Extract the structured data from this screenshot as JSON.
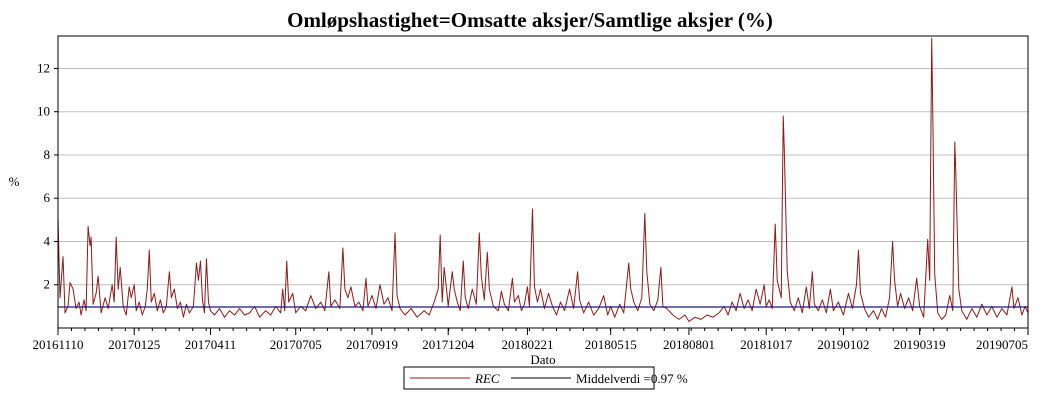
{
  "chart_data": {
    "type": "line",
    "title": "Omløpshastighet=Omsatte aksjer/Samtlige aksjer (%)",
    "xlabel": "Dato",
    "ylabel": "%",
    "xlim": [
      "20161110",
      "20190705"
    ],
    "ylim": [
      0,
      13.5
    ],
    "y_ticks": [
      2,
      4,
      6,
      8,
      10,
      12
    ],
    "x_ticks": [
      "20161110",
      "20170125",
      "20170411",
      "20170705",
      "20170919",
      "20171204",
      "20180221",
      "20180515",
      "20180801",
      "20181017",
      "20190102",
      "20190319",
      "20190705"
    ],
    "grid": "horizontal",
    "legend_placement": "bottom-center",
    "colors": {
      "series": "#8b1a1a",
      "mean": "#1a1a7a",
      "grid": "#c0c0c0"
    },
    "legend": [
      {
        "label": "REC",
        "italic": true
      },
      {
        "label": "Middelverdi =0.97 %",
        "italic": false
      }
    ],
    "series": [
      {
        "name": "REC",
        "points": [
          [
            "20161110",
            5.1
          ],
          [
            "20161112",
            1.4
          ],
          [
            "20161115",
            3.3
          ],
          [
            "20161117",
            0.7
          ],
          [
            "20161120",
            1.0
          ],
          [
            "20161122",
            2.1
          ],
          [
            "20161125",
            1.8
          ],
          [
            "20161128",
            0.9
          ],
          [
            "20161201",
            1.2
          ],
          [
            "20161203",
            0.6
          ],
          [
            "20161206",
            1.3
          ],
          [
            "20161208",
            0.8
          ],
          [
            "20161210",
            4.7
          ],
          [
            "20161212",
            3.8
          ],
          [
            "20161213",
            4.2
          ],
          [
            "20161215",
            1.1
          ],
          [
            "20161218",
            1.6
          ],
          [
            "20161220",
            2.4
          ],
          [
            "20161223",
            0.7
          ],
          [
            "20161227",
            1.4
          ],
          [
            "20161230",
            0.9
          ],
          [
            "20170103",
            2.0
          ],
          [
            "20170105",
            1.2
          ],
          [
            "20170107",
            4.2
          ],
          [
            "20170109",
            1.8
          ],
          [
            "20170111",
            2.8
          ],
          [
            "20170114",
            1.0
          ],
          [
            "20170117",
            0.6
          ],
          [
            "20170120",
            1.9
          ],
          [
            "20170122",
            1.4
          ],
          [
            "20170125",
            2.0
          ],
          [
            "20170127",
            0.8
          ],
          [
            "20170130",
            1.2
          ],
          [
            "20170202",
            0.6
          ],
          [
            "20170205",
            1.0
          ],
          [
            "20170207",
            1.8
          ],
          [
            "20170209",
            3.6
          ],
          [
            "20170211",
            1.2
          ],
          [
            "20170214",
            1.6
          ],
          [
            "20170217",
            0.8
          ],
          [
            "20170220",
            1.3
          ],
          [
            "20170223",
            0.7
          ],
          [
            "20170226",
            1.0
          ],
          [
            "20170301",
            2.6
          ],
          [
            "20170303",
            1.4
          ],
          [
            "20170306",
            1.8
          ],
          [
            "20170309",
            0.9
          ],
          [
            "20170312",
            1.2
          ],
          [
            "20170315",
            0.5
          ],
          [
            "20170318",
            1.1
          ],
          [
            "20170321",
            0.7
          ],
          [
            "20170325",
            1.0
          ],
          [
            "20170328",
            3.0
          ],
          [
            "20170330",
            2.2
          ],
          [
            "20170401",
            3.1
          ],
          [
            "20170403",
            1.3
          ],
          [
            "20170405",
            0.7
          ],
          [
            "20170407",
            3.2
          ],
          [
            "20170409",
            1.2
          ],
          [
            "20170411",
            0.8
          ],
          [
            "20170415",
            0.6
          ],
          [
            "20170420",
            0.9
          ],
          [
            "20170425",
            0.5
          ],
          [
            "20170430",
            0.8
          ],
          [
            "20170505",
            0.6
          ],
          [
            "20170510",
            0.9
          ],
          [
            "20170515",
            0.6
          ],
          [
            "20170520",
            0.7
          ],
          [
            "20170525",
            1.0
          ],
          [
            "20170530",
            0.5
          ],
          [
            "20170605",
            0.8
          ],
          [
            "20170610",
            0.6
          ],
          [
            "20170615",
            1.0
          ],
          [
            "20170620",
            0.7
          ],
          [
            "20170622",
            1.8
          ],
          [
            "20170624",
            0.8
          ],
          [
            "20170626",
            3.1
          ],
          [
            "20170628",
            1.2
          ],
          [
            "20170702",
            1.6
          ],
          [
            "20170705",
            0.7
          ],
          [
            "20170710",
            1.0
          ],
          [
            "20170715",
            0.8
          ],
          [
            "20170720",
            1.5
          ],
          [
            "20170725",
            0.9
          ],
          [
            "20170730",
            1.2
          ],
          [
            "20170803",
            0.8
          ],
          [
            "20170807",
            2.6
          ],
          [
            "20170809",
            1.0
          ],
          [
            "20170813",
            1.3
          ],
          [
            "20170818",
            0.9
          ],
          [
            "20170821",
            3.7
          ],
          [
            "20170823",
            1.8
          ],
          [
            "20170826",
            1.4
          ],
          [
            "20170829",
            1.9
          ],
          [
            "20170902",
            1.0
          ],
          [
            "20170906",
            1.2
          ],
          [
            "20170910",
            0.8
          ],
          [
            "20170913",
            2.3
          ],
          [
            "20170915",
            1.0
          ],
          [
            "20170919",
            1.5
          ],
          [
            "20170923",
            0.9
          ],
          [
            "20170927",
            2.0
          ],
          [
            "20171001",
            1.1
          ],
          [
            "20171005",
            1.4
          ],
          [
            "20171009",
            0.8
          ],
          [
            "20171012",
            4.4
          ],
          [
            "20171014",
            1.5
          ],
          [
            "20171017",
            0.9
          ],
          [
            "20171022",
            0.6
          ],
          [
            "20171028",
            0.9
          ],
          [
            "20171103",
            0.5
          ],
          [
            "20171110",
            0.8
          ],
          [
            "20171115",
            0.6
          ],
          [
            "20171120",
            1.2
          ],
          [
            "20171124",
            1.8
          ],
          [
            "20171126",
            4.3
          ],
          [
            "20171128",
            1.2
          ],
          [
            "20171130",
            2.8
          ],
          [
            "20171203",
            1.5
          ],
          [
            "20171204",
            1.0
          ],
          [
            "20171208",
            2.6
          ],
          [
            "20171210",
            1.8
          ],
          [
            "20171213",
            1.2
          ],
          [
            "20171216",
            0.8
          ],
          [
            "20171219",
            3.1
          ],
          [
            "20171221",
            1.4
          ],
          [
            "20171224",
            0.9
          ],
          [
            "20171228",
            1.8
          ],
          [
            "20180101",
            1.1
          ],
          [
            "20180104",
            4.4
          ],
          [
            "20180106",
            2.4
          ],
          [
            "20180109",
            1.3
          ],
          [
            "20180112",
            3.5
          ],
          [
            "20180114",
            1.8
          ],
          [
            "20180118",
            1.0
          ],
          [
            "20180123",
            0.8
          ],
          [
            "20180126",
            1.7
          ],
          [
            "20180129",
            1.1
          ],
          [
            "20180202",
            0.8
          ],
          [
            "20180206",
            2.3
          ],
          [
            "20180208",
            1.2
          ],
          [
            "20180212",
            1.5
          ],
          [
            "20180215",
            0.8
          ],
          [
            "20180218",
            1.1
          ],
          [
            "20180221",
            1.9
          ],
          [
            "20180223",
            1.0
          ],
          [
            "20180226",
            5.5
          ],
          [
            "20180228",
            1.9
          ],
          [
            "20180303",
            1.2
          ],
          [
            "20180306",
            1.8
          ],
          [
            "20180310",
            0.9
          ],
          [
            "20180314",
            1.6
          ],
          [
            "20180318",
            1.0
          ],
          [
            "20180322",
            0.6
          ],
          [
            "20180326",
            1.2
          ],
          [
            "20180330",
            0.8
          ],
          [
            "20180404",
            1.8
          ],
          [
            "20180408",
            0.9
          ],
          [
            "20180412",
            2.6
          ],
          [
            "20180414",
            1.3
          ],
          [
            "20180418",
            0.7
          ],
          [
            "20180423",
            1.2
          ],
          [
            "20180428",
            0.6
          ],
          [
            "20180503",
            0.9
          ],
          [
            "20180508",
            1.5
          ],
          [
            "20180512",
            0.6
          ],
          [
            "20180515",
            1.0
          ],
          [
            "20180519",
            0.5
          ],
          [
            "20180524",
            1.1
          ],
          [
            "20180528",
            0.7
          ],
          [
            "20180602",
            3.0
          ],
          [
            "20180604",
            1.8
          ],
          [
            "20180607",
            1.2
          ],
          [
            "20180611",
            0.8
          ],
          [
            "20180615",
            1.4
          ],
          [
            "20180618",
            5.3
          ],
          [
            "20180620",
            2.6
          ],
          [
            "20180623",
            1.1
          ],
          [
            "20180627",
            0.8
          ],
          [
            "20180701",
            1.3
          ],
          [
            "20180704",
            2.8
          ],
          [
            "20180706",
            1.0
          ],
          [
            "20180710",
            0.9
          ],
          [
            "20180716",
            0.6
          ],
          [
            "20180722",
            0.4
          ],
          [
            "20180728",
            0.6
          ],
          [
            "20180801",
            0.3
          ],
          [
            "20180807",
            0.5
          ],
          [
            "20180813",
            0.4
          ],
          [
            "20180819",
            0.6
          ],
          [
            "20180825",
            0.5
          ],
          [
            "20180831",
            0.7
          ],
          [
            "20180905",
            1.0
          ],
          [
            "20180909",
            0.6
          ],
          [
            "20180913",
            1.2
          ],
          [
            "20180917",
            0.8
          ],
          [
            "20180921",
            1.6
          ],
          [
            "20180925",
            0.9
          ],
          [
            "20180929",
            1.3
          ],
          [
            "20181003",
            0.8
          ],
          [
            "20181007",
            1.8
          ],
          [
            "20181011",
            1.1
          ],
          [
            "20181015",
            2.0
          ],
          [
            "20181017",
            1.0
          ],
          [
            "20181020",
            1.3
          ],
          [
            "20181023",
            0.9
          ],
          [
            "20181026",
            4.8
          ],
          [
            "20181028",
            2.2
          ],
          [
            "20181101",
            1.4
          ],
          [
            "20181103",
            9.8
          ],
          [
            "20181104",
            8.3
          ],
          [
            "20181107",
            2.6
          ],
          [
            "20181110",
            1.2
          ],
          [
            "20181114",
            0.8
          ],
          [
            "20181118",
            1.4
          ],
          [
            "20181122",
            0.7
          ],
          [
            "20181126",
            1.9
          ],
          [
            "20181129",
            0.9
          ],
          [
            "20181202",
            2.6
          ],
          [
            "20181204",
            1.1
          ],
          [
            "20181208",
            0.8
          ],
          [
            "20181212",
            1.3
          ],
          [
            "20181216",
            0.7
          ],
          [
            "20181220",
            1.8
          ],
          [
            "20181223",
            0.8
          ],
          [
            "20181228",
            1.2
          ],
          [
            "20190102",
            0.6
          ],
          [
            "20190107",
            1.6
          ],
          [
            "20190111",
            0.9
          ],
          [
            "20190115",
            2.0
          ],
          [
            "20190117",
            3.6
          ],
          [
            "20190119",
            1.6
          ],
          [
            "20190123",
            0.9
          ],
          [
            "20190127",
            0.5
          ],
          [
            "20190201",
            0.8
          ],
          [
            "20190205",
            0.4
          ],
          [
            "20190209",
            0.9
          ],
          [
            "20190213",
            0.5
          ],
          [
            "20190217",
            1.4
          ],
          [
            "20190220",
            4.0
          ],
          [
            "20190222",
            2.2
          ],
          [
            "20190225",
            1.0
          ],
          [
            "20190228",
            1.6
          ],
          [
            "20190304",
            0.9
          ],
          [
            "20190308",
            1.4
          ],
          [
            "20190312",
            0.8
          ],
          [
            "20190316",
            2.3
          ],
          [
            "20190319",
            1.0
          ],
          [
            "20190323",
            0.5
          ],
          [
            "20190327",
            4.1
          ],
          [
            "20190329",
            2.2
          ],
          [
            "20190331",
            13.4
          ],
          [
            "20190401",
            10.2
          ],
          [
            "20190403",
            2.5
          ],
          [
            "20190406",
            0.7
          ],
          [
            "20190410",
            0.4
          ],
          [
            "20190414",
            0.6
          ],
          [
            "20190418",
            1.5
          ],
          [
            "20190421",
            0.8
          ],
          [
            "20190423",
            8.6
          ],
          [
            "20190424",
            7.2
          ],
          [
            "20190427",
            1.8
          ],
          [
            "20190430",
            0.8
          ],
          [
            "20190505",
            0.4
          ],
          [
            "20190510",
            0.9
          ],
          [
            "20190515",
            0.5
          ],
          [
            "20190520",
            1.1
          ],
          [
            "20190525",
            0.6
          ],
          [
            "20190530",
            1.0
          ],
          [
            "20190604",
            0.5
          ],
          [
            "20190609",
            0.9
          ],
          [
            "20190614",
            0.6
          ],
          [
            "20190619",
            1.9
          ],
          [
            "20190621",
            0.9
          ],
          [
            "20190625",
            1.4
          ],
          [
            "20190629",
            0.6
          ],
          [
            "20190702",
            1.0
          ],
          [
            "20190705",
            0.7
          ]
        ]
      },
      {
        "name": "Middelverdi =0.97 %",
        "value": 0.97
      }
    ]
  }
}
